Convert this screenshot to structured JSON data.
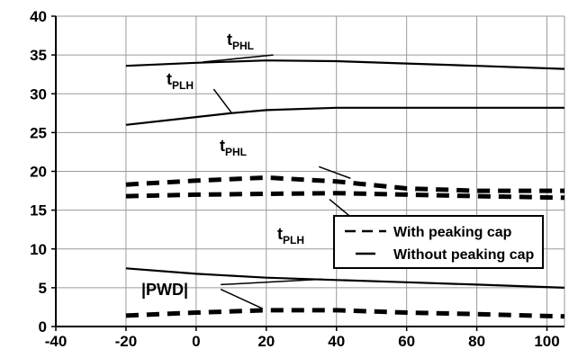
{
  "chart_data": {
    "type": "line",
    "title": "",
    "xlabel": "",
    "ylabel": "",
    "xlim": [
      -40,
      105
    ],
    "ylim": [
      0,
      40
    ],
    "x_ticks": [
      -40,
      -20,
      0,
      20,
      40,
      60,
      80,
      100
    ],
    "y_ticks": [
      0,
      5,
      10,
      15,
      20,
      25,
      30,
      35,
      40
    ],
    "grid": true,
    "legend_position": "lower-right",
    "legend": [
      {
        "label": "With peaking cap",
        "style": "dashed"
      },
      {
        "label": "Without peaking cap",
        "style": "solid"
      }
    ],
    "series": [
      {
        "name": "tPHL",
        "cap": "without",
        "style": "solid",
        "points": [
          [
            -20,
            33.6
          ],
          [
            0,
            34.0
          ],
          [
            20,
            34.3
          ],
          [
            40,
            34.2
          ],
          [
            60,
            33.9
          ],
          [
            80,
            33.6
          ],
          [
            105,
            33.2
          ]
        ]
      },
      {
        "name": "tPLH",
        "cap": "without",
        "style": "solid",
        "points": [
          [
            -20,
            26.0
          ],
          [
            0,
            27.0
          ],
          [
            10,
            27.5
          ],
          [
            20,
            27.9
          ],
          [
            40,
            28.2
          ],
          [
            60,
            28.2
          ],
          [
            80,
            28.2
          ],
          [
            105,
            28.2
          ]
        ]
      },
      {
        "name": "tPHL",
        "cap": "with",
        "style": "dashed",
        "points": [
          [
            -20,
            18.3
          ],
          [
            0,
            18.8
          ],
          [
            20,
            19.2
          ],
          [
            40,
            18.7
          ],
          [
            60,
            17.8
          ],
          [
            80,
            17.5
          ],
          [
            105,
            17.5
          ]
        ]
      },
      {
        "name": "tPLH",
        "cap": "with",
        "style": "dashed",
        "points": [
          [
            -20,
            16.8
          ],
          [
            0,
            17.0
          ],
          [
            20,
            17.1
          ],
          [
            40,
            17.2
          ],
          [
            60,
            17.0
          ],
          [
            80,
            16.8
          ],
          [
            105,
            16.6
          ]
        ]
      },
      {
        "name": "|PWD|",
        "cap": "without",
        "style": "solid",
        "points": [
          [
            -20,
            7.5
          ],
          [
            0,
            6.8
          ],
          [
            20,
            6.3
          ],
          [
            40,
            6.0
          ],
          [
            60,
            5.7
          ],
          [
            80,
            5.4
          ],
          [
            105,
            5.0
          ]
        ]
      },
      {
        "name": "|PWD|",
        "cap": "with",
        "style": "dashed",
        "points": [
          [
            -20,
            1.4
          ],
          [
            0,
            1.8
          ],
          [
            20,
            2.1
          ],
          [
            40,
            2.1
          ],
          [
            60,
            1.8
          ],
          [
            80,
            1.6
          ],
          [
            105,
            1.3
          ]
        ]
      }
    ],
    "annotations": [
      {
        "main": "t",
        "sub": "PHL",
        "target": "upper solid tPHL"
      },
      {
        "main": "t",
        "sub": "PLH",
        "target": "upper solid tPLH"
      },
      {
        "main": "t",
        "sub": "PHL",
        "target": "dashed tPHL"
      },
      {
        "main": "t",
        "sub": "PLH",
        "target": "dashed tPLH"
      },
      {
        "main": "|PWD|",
        "sub": "",
        "target": "PWD curves"
      }
    ]
  }
}
